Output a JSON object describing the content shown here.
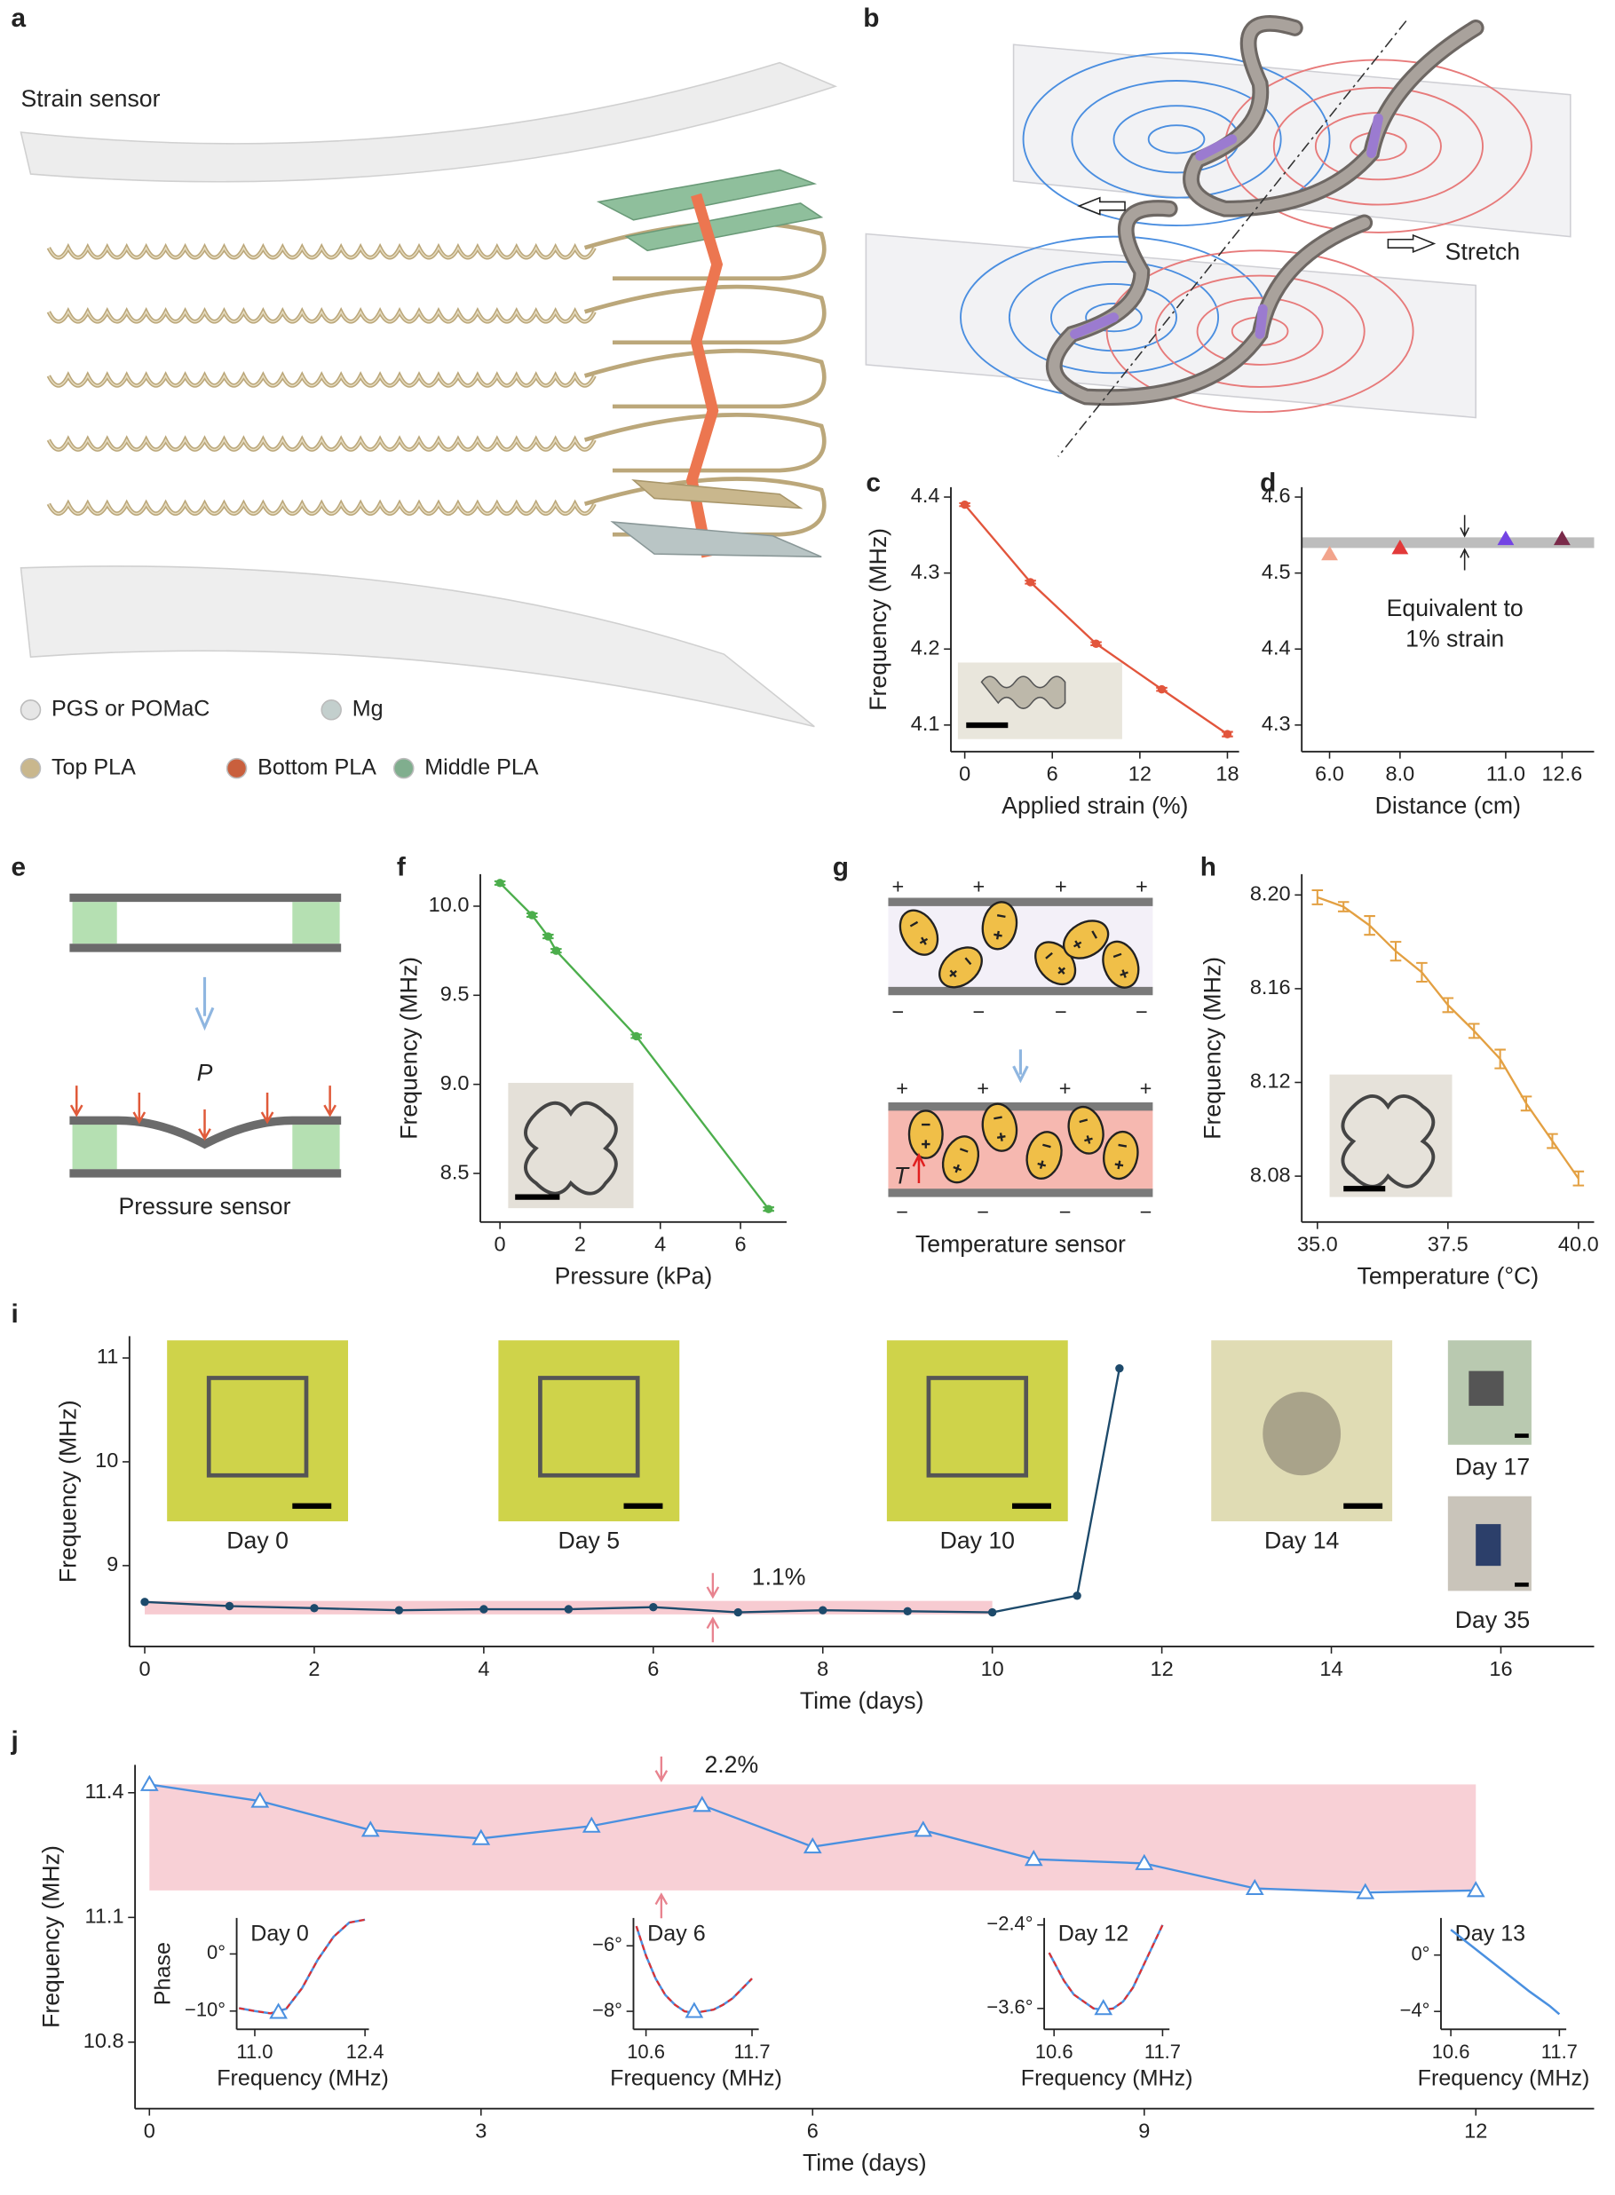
{
  "figure": {
    "a": {
      "label": "a",
      "title": "Strain sensor",
      "legend": [
        "PGS or POMaC",
        "Mg",
        "Top PLA",
        "Bottom PLA",
        "Middle PLA"
      ],
      "legend_colors": [
        "#e6e6e6",
        "#c3cfcd",
        "#c9b78d",
        "#c95f3d",
        "#80ae8e"
      ]
    },
    "b": {
      "label": "b",
      "stretch": "Stretch"
    },
    "e": {
      "label": "e",
      "symbol": "P",
      "caption": "Pressure sensor"
    },
    "g": {
      "label": "g",
      "symbol": "T",
      "caption": "Temperature sensor",
      "plus": "+",
      "minus": "−"
    }
  },
  "chart_data": [
    {
      "type": "line",
      "label": "c",
      "xlabel": "Applied strain (%)",
      "ylabel": "Frequency (MHz)",
      "xlim": [
        -0.95,
        18.8
      ],
      "ylim": [
        4.065,
        4.413
      ],
      "xticks": [
        0,
        6,
        12,
        18
      ],
      "yticks": [
        4.1,
        4.2,
        4.3,
        4.4
      ],
      "x": [
        0,
        4.5,
        9,
        13.5,
        18
      ],
      "series": [
        {
          "color": "#e2553c",
          "marker_style": "dot",
          "values": [
            4.39,
            4.288,
            4.207,
            4.147,
            4.088
          ],
          "errors": [
            0.002,
            0.002,
            0.002,
            0.002,
            0.003
          ]
        }
      ]
    },
    {
      "type": "scatter",
      "label": "d",
      "xlabel": "Distance (cm)",
      "xlim": [
        5.21,
        13.51
      ],
      "ylim": [
        4.265,
        4.613
      ],
      "xticks": [
        {
          "value": 6,
          "label": "6.0"
        },
        {
          "value": 8,
          "label": "8.0"
        },
        {
          "value": 11,
          "label": "11.0"
        },
        12.6
      ],
      "yticks": [
        4.3,
        4.4,
        4.5,
        4.6
      ],
      "band": {
        "y": [
          4.533,
          4.547
        ],
        "color": "#bdbdbd"
      },
      "annotation": [
        "Equivalent to",
        "1% strain"
      ],
      "series": [
        {
          "marker_style": "triangle",
          "x": [
            6,
            8,
            11,
            12.6
          ],
          "values": [
            4.525,
            4.533,
            4.545,
            4.545
          ],
          "colors": [
            "#f2a48c",
            "#e23a3a",
            "#7444e4",
            "#7a2a4a"
          ]
        }
      ]
    },
    {
      "type": "line",
      "label": "f",
      "xlabel": "Pressure (kPa)",
      "ylabel": "Frequency (MHz)",
      "xlim": [
        -0.49,
        7.15
      ],
      "ylim": [
        8.227,
        10.18
      ],
      "xticks": [
        0,
        2,
        4,
        6
      ],
      "yticks": [
        8.5,
        {
          "value": 9,
          "label": "9.0"
        },
        9.5,
        {
          "value": 10,
          "label": "10.0"
        }
      ],
      "x": [
        0,
        0.8,
        1.2,
        1.4,
        3.4,
        6.7
      ],
      "series": [
        {
          "color": "#4cae4c",
          "marker_style": "dot",
          "values": [
            10.13,
            9.95,
            9.83,
            9.75,
            9.27,
            8.3
          ],
          "errors": [
            0.01,
            0.01,
            0.01,
            0.01,
            0.01,
            0.01
          ]
        }
      ]
    },
    {
      "type": "line",
      "label": "h",
      "xlabel": "Temperature (°C)",
      "ylabel": "Frequency (MHz)",
      "xlim": [
        34.7,
        40.3
      ],
      "ylim": [
        8.0604,
        8.2089
      ],
      "xticks": [
        {
          "value": 35,
          "label": "35.0"
        },
        37.5,
        {
          "value": 40,
          "label": "40.0"
        }
      ],
      "yticks": [
        8.08,
        8.12,
        8.16,
        {
          "value": 8.2,
          "label": "8.20"
        }
      ],
      "x": [
        35,
        35.5,
        36,
        36.5,
        37,
        37.5,
        38,
        38.5,
        39,
        39.5,
        40
      ],
      "series": [
        {
          "color": "#e3a042",
          "marker_style": "none",
          "values": [
            8.199,
            8.195,
            8.187,
            8.176,
            8.167,
            8.153,
            8.142,
            8.13,
            8.111,
            8.095,
            8.079
          ],
          "errors": [
            0.003,
            0.002,
            0.004,
            0.004,
            0.004,
            0.003,
            0.003,
            0.004,
            0.003,
            0.003,
            0.003
          ]
        }
      ]
    },
    {
      "type": "line",
      "label": "i",
      "xlabel": "Time (days)",
      "ylabel": "Frequency (MHz)",
      "xlim": [
        -0.18,
        17.1
      ],
      "ylim": [
        8.22,
        11.21
      ],
      "xticks": [
        0,
        2,
        4,
        6,
        8,
        10,
        12,
        14,
        16
      ],
      "yticks": [
        9,
        10,
        11
      ],
      "band": {
        "x": [
          0,
          10
        ],
        "y": [
          8.53,
          8.66
        ],
        "color": "#f7cbd1"
      },
      "annotation": [
        "1.1%"
      ],
      "photo_labels": [
        "Day 0",
        "Day 5",
        "Day 10",
        "Day 14",
        "Day 17",
        "Day 35"
      ],
      "x": [
        0,
        1,
        2,
        3,
        4,
        5,
        6,
        7,
        8,
        9,
        10,
        11,
        11.5
      ],
      "series": [
        {
          "color": "#1d4a6b",
          "marker_style": "dot",
          "values": [
            8.65,
            8.61,
            8.59,
            8.57,
            8.58,
            8.58,
            8.6,
            8.55,
            8.57,
            8.56,
            8.55,
            8.71,
            10.9
          ]
        }
      ]
    },
    {
      "type": "line",
      "label": "j",
      "xlabel": "Time (days)",
      "ylabel": "Frequency (MHz)",
      "xlim": [
        -0.13,
        13.07
      ],
      "ylim": [
        10.64,
        11.467
      ],
      "xticks": [
        0,
        3,
        6,
        9,
        12
      ],
      "yticks": [
        10.8,
        11.1,
        11.4
      ],
      "band": {
        "x": [
          0,
          12
        ],
        "y": [
          11.165,
          11.42
        ],
        "color": "#f8d0d6"
      },
      "annotation": [
        "2.2%"
      ],
      "x": [
        0,
        1,
        2,
        3,
        4,
        5,
        6,
        7,
        8,
        9,
        10,
        11,
        12
      ],
      "series": [
        {
          "color": "#4a90e0",
          "marker_style": "triangle-open",
          "values": [
            11.42,
            11.38,
            11.31,
            11.29,
            11.32,
            11.37,
            11.27,
            11.31,
            11.24,
            11.23,
            11.17,
            11.16,
            11.165
          ]
        }
      ]
    },
    {
      "type": "line",
      "title": "Day 0",
      "xlabel": "Frequency (MHz)",
      "ylabel": "Phase",
      "xlim": [
        10.77,
        12.45
      ],
      "ylim": [
        -13.2,
        6.3
      ],
      "xticks": [
        {
          "value": 11,
          "label": "11.0"
        },
        12.4
      ],
      "yticks": [
        {
          "value": 0,
          "label": "0°"
        },
        {
          "value": -10,
          "label": "−10°"
        }
      ],
      "x": [
        10.8,
        11.0,
        11.2,
        11.4,
        11.6,
        11.8,
        12.0,
        12.2,
        12.4
      ],
      "series": [
        {
          "color": "#4a90e0",
          "fit_color": "#e03030",
          "values": [
            -9.5,
            -10,
            -10.4,
            -9.6,
            -6,
            -1,
            3,
            5.5,
            6
          ],
          "marker": {
            "x": 11.3,
            "y": -10.2
          }
        }
      ]
    },
    {
      "type": "line",
      "title": "Day 6",
      "xlabel": "Frequency (MHz)",
      "xlim": [
        10.47,
        11.77
      ],
      "ylim": [
        -8.55,
        -5.15
      ],
      "xticks": [
        10.6,
        11.7
      ],
      "yticks": [
        {
          "value": -6,
          "label": "−6°"
        },
        {
          "value": -8,
          "label": "−8°"
        }
      ],
      "x": [
        10.5,
        10.6,
        10.7,
        10.8,
        10.9,
        11.0,
        11.1,
        11.2,
        11.3,
        11.4,
        11.5,
        11.6,
        11.7
      ],
      "series": [
        {
          "color": "#4a90e0",
          "fit_color": "#e03030",
          "values": [
            -5.4,
            -6.3,
            -7.0,
            -7.5,
            -7.8,
            -8.0,
            -8.05,
            -8.0,
            -7.95,
            -7.8,
            -7.6,
            -7.3,
            -7.0
          ],
          "marker": {
            "x": 11.1,
            "y": -8.0
          }
        }
      ]
    },
    {
      "type": "line",
      "title": "Day 12",
      "xlabel": "Frequency (MHz)",
      "xlim": [
        10.5,
        11.77
      ],
      "ylim": [
        -3.9,
        -2.3
      ],
      "xticks": [
        10.6,
        11.7
      ],
      "yticks": [
        {
          "value": -2.4,
          "label": "−2.4°"
        },
        {
          "value": -3.6,
          "label": "−3.6°"
        }
      ],
      "x": [
        10.55,
        10.7,
        10.8,
        10.9,
        11.0,
        11.1,
        11.2,
        11.3,
        11.4,
        11.5,
        11.6,
        11.7
      ],
      "series": [
        {
          "color": "#4a90e0",
          "fit_color": "#e03030",
          "values": [
            -2.8,
            -3.2,
            -3.4,
            -3.5,
            -3.6,
            -3.62,
            -3.6,
            -3.5,
            -3.3,
            -3.0,
            -2.7,
            -2.4
          ],
          "marker": {
            "x": 11.1,
            "y": -3.6
          }
        }
      ]
    },
    {
      "type": "line",
      "title": "Day 13",
      "xlabel": "Frequency (MHz)",
      "xlim": [
        10.5,
        11.77
      ],
      "ylim": [
        -5.27,
        2.63
      ],
      "xticks": [
        10.6,
        11.7
      ],
      "yticks": [
        {
          "value": 0,
          "label": "0°"
        },
        {
          "value": -4,
          "label": "−4°"
        }
      ],
      "x": [
        10.6,
        10.8,
        11.0,
        11.2,
        11.4,
        11.6,
        11.7
      ],
      "series": [
        {
          "color": "#4a90e0",
          "values": [
            1.8,
            0.7,
            -0.4,
            -1.5,
            -2.6,
            -3.6,
            -4.2
          ]
        }
      ]
    }
  ]
}
